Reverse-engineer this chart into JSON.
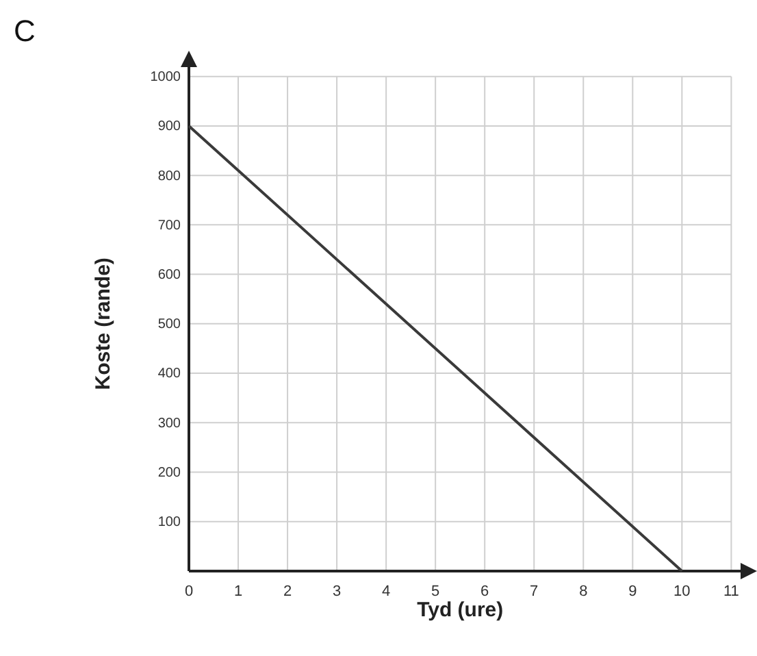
{
  "chart_data": {
    "type": "line",
    "xlabel": "Tyd (ure)",
    "ylabel": "Koste (rande)",
    "annotations": [
      "C"
    ],
    "x": [
      0,
      10
    ],
    "series": [
      {
        "color": "#3a3a3a",
        "values": [
          900,
          0
        ]
      }
    ],
    "xlim": [
      0,
      11.3
    ],
    "ylim": [
      0,
      1030
    ],
    "xticks": [
      0,
      1,
      2,
      3,
      4,
      5,
      6,
      7,
      8,
      9,
      10,
      11
    ],
    "yticks": [
      100,
      200,
      300,
      400,
      500,
      600,
      700,
      800,
      900,
      1000
    ],
    "grid": true,
    "marker": "none",
    "line_style": "solid"
  }
}
